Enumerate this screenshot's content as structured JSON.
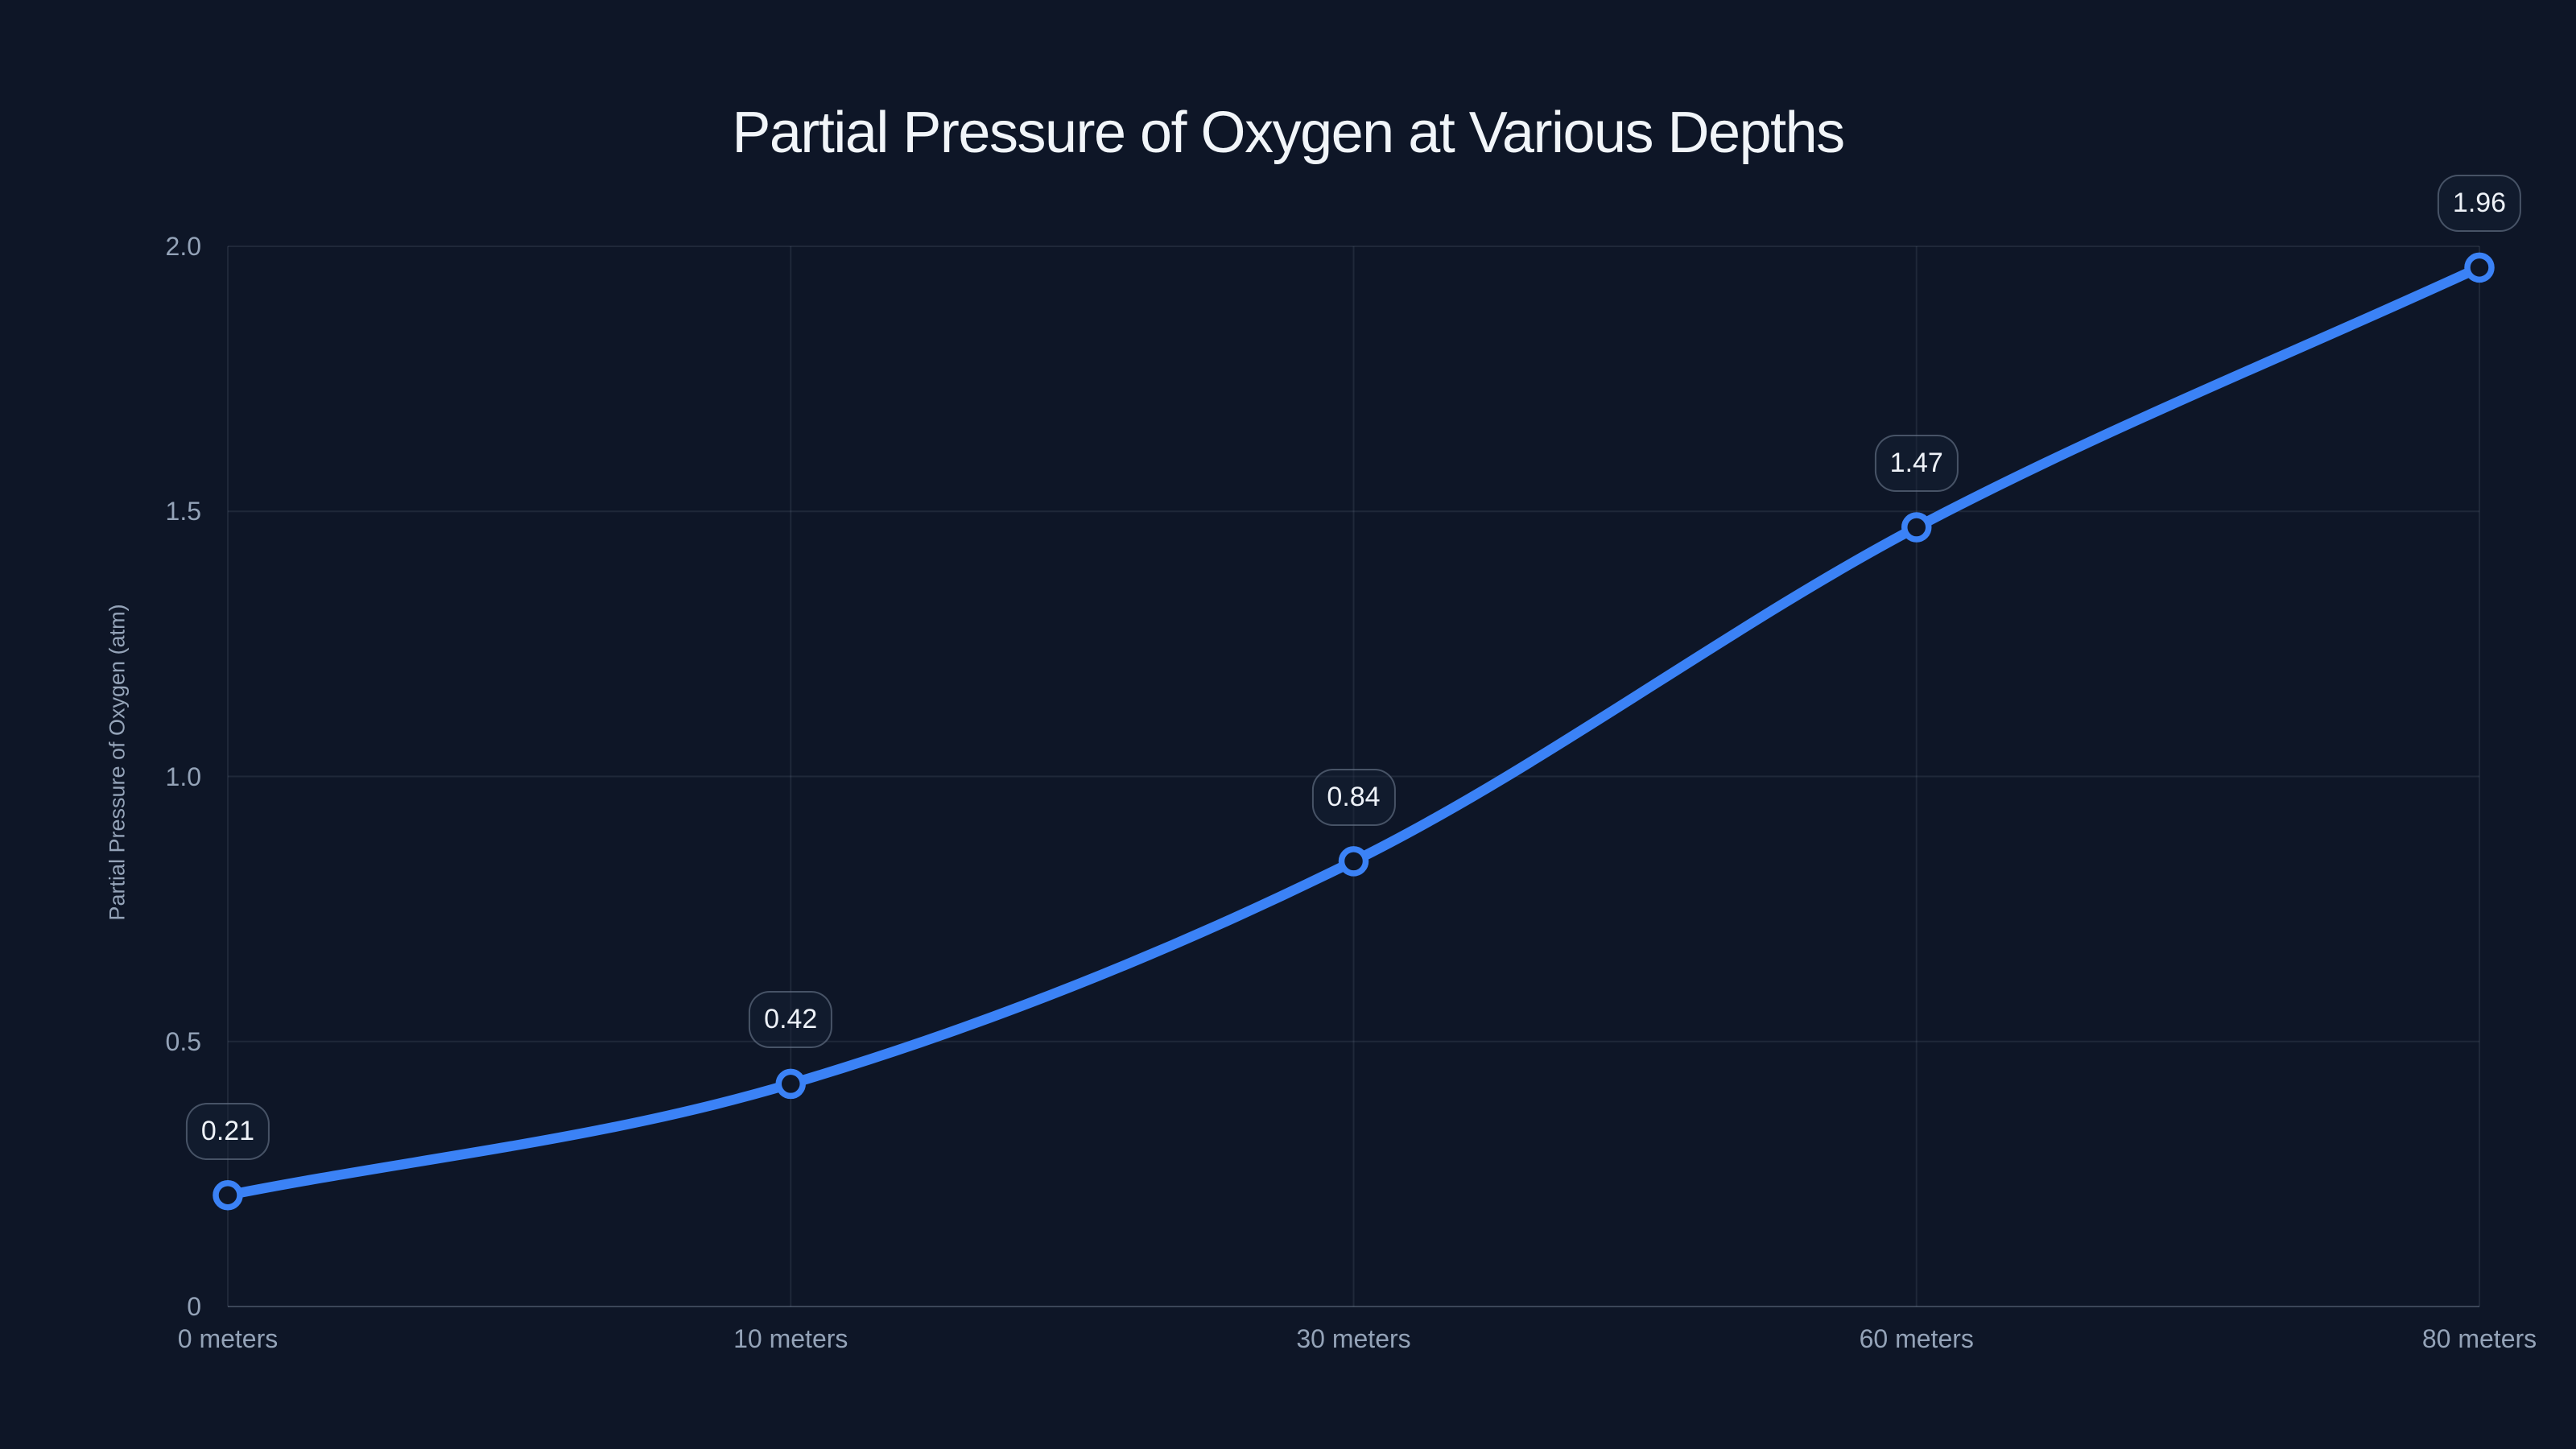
{
  "title": "Partial Pressure of Oxygen at Various Depths",
  "colors": {
    "background": "#0e1627",
    "line": "#3b82f6",
    "marker_stroke": "#3b82f6",
    "marker_fill": "#0e1627",
    "gridline": "rgba(148,163,184,0.13)",
    "axis_line": "rgba(148,163,184,0.34)",
    "tick_text": "#94a3b8",
    "title_text": "#f1f5f9",
    "point_label_text": "#eef2f8",
    "point_label_border": "rgba(148,163,184,0.42)"
  },
  "chart_data": {
    "type": "line",
    "title": "Partial Pressure of Oxygen at Various Depths",
    "categories": [
      "0 meters",
      "10 meters",
      "30 meters",
      "60 meters",
      "80 meters"
    ],
    "series": [
      {
        "name": "Partial Pressure of Oxygen (atm)",
        "values": [
          0.21,
          0.42,
          0.84,
          1.47,
          1.96
        ]
      }
    ],
    "point_labels": [
      "0.21",
      "0.42",
      "0.84",
      "1.47",
      "1.96"
    ],
    "xlabel": "",
    "ylabel": "Partial Pressure of Oxygen (atm)",
    "ylim": [
      0,
      2
    ],
    "yticks": [
      0,
      0.5,
      1,
      1.5,
      2
    ],
    "ytick_labels": [
      "0",
      "0.5",
      "1.0",
      "1.5",
      "2.0"
    ],
    "grid": true,
    "legend": false,
    "curve": "smooth-monotone",
    "marker_style": "open-circle"
  }
}
